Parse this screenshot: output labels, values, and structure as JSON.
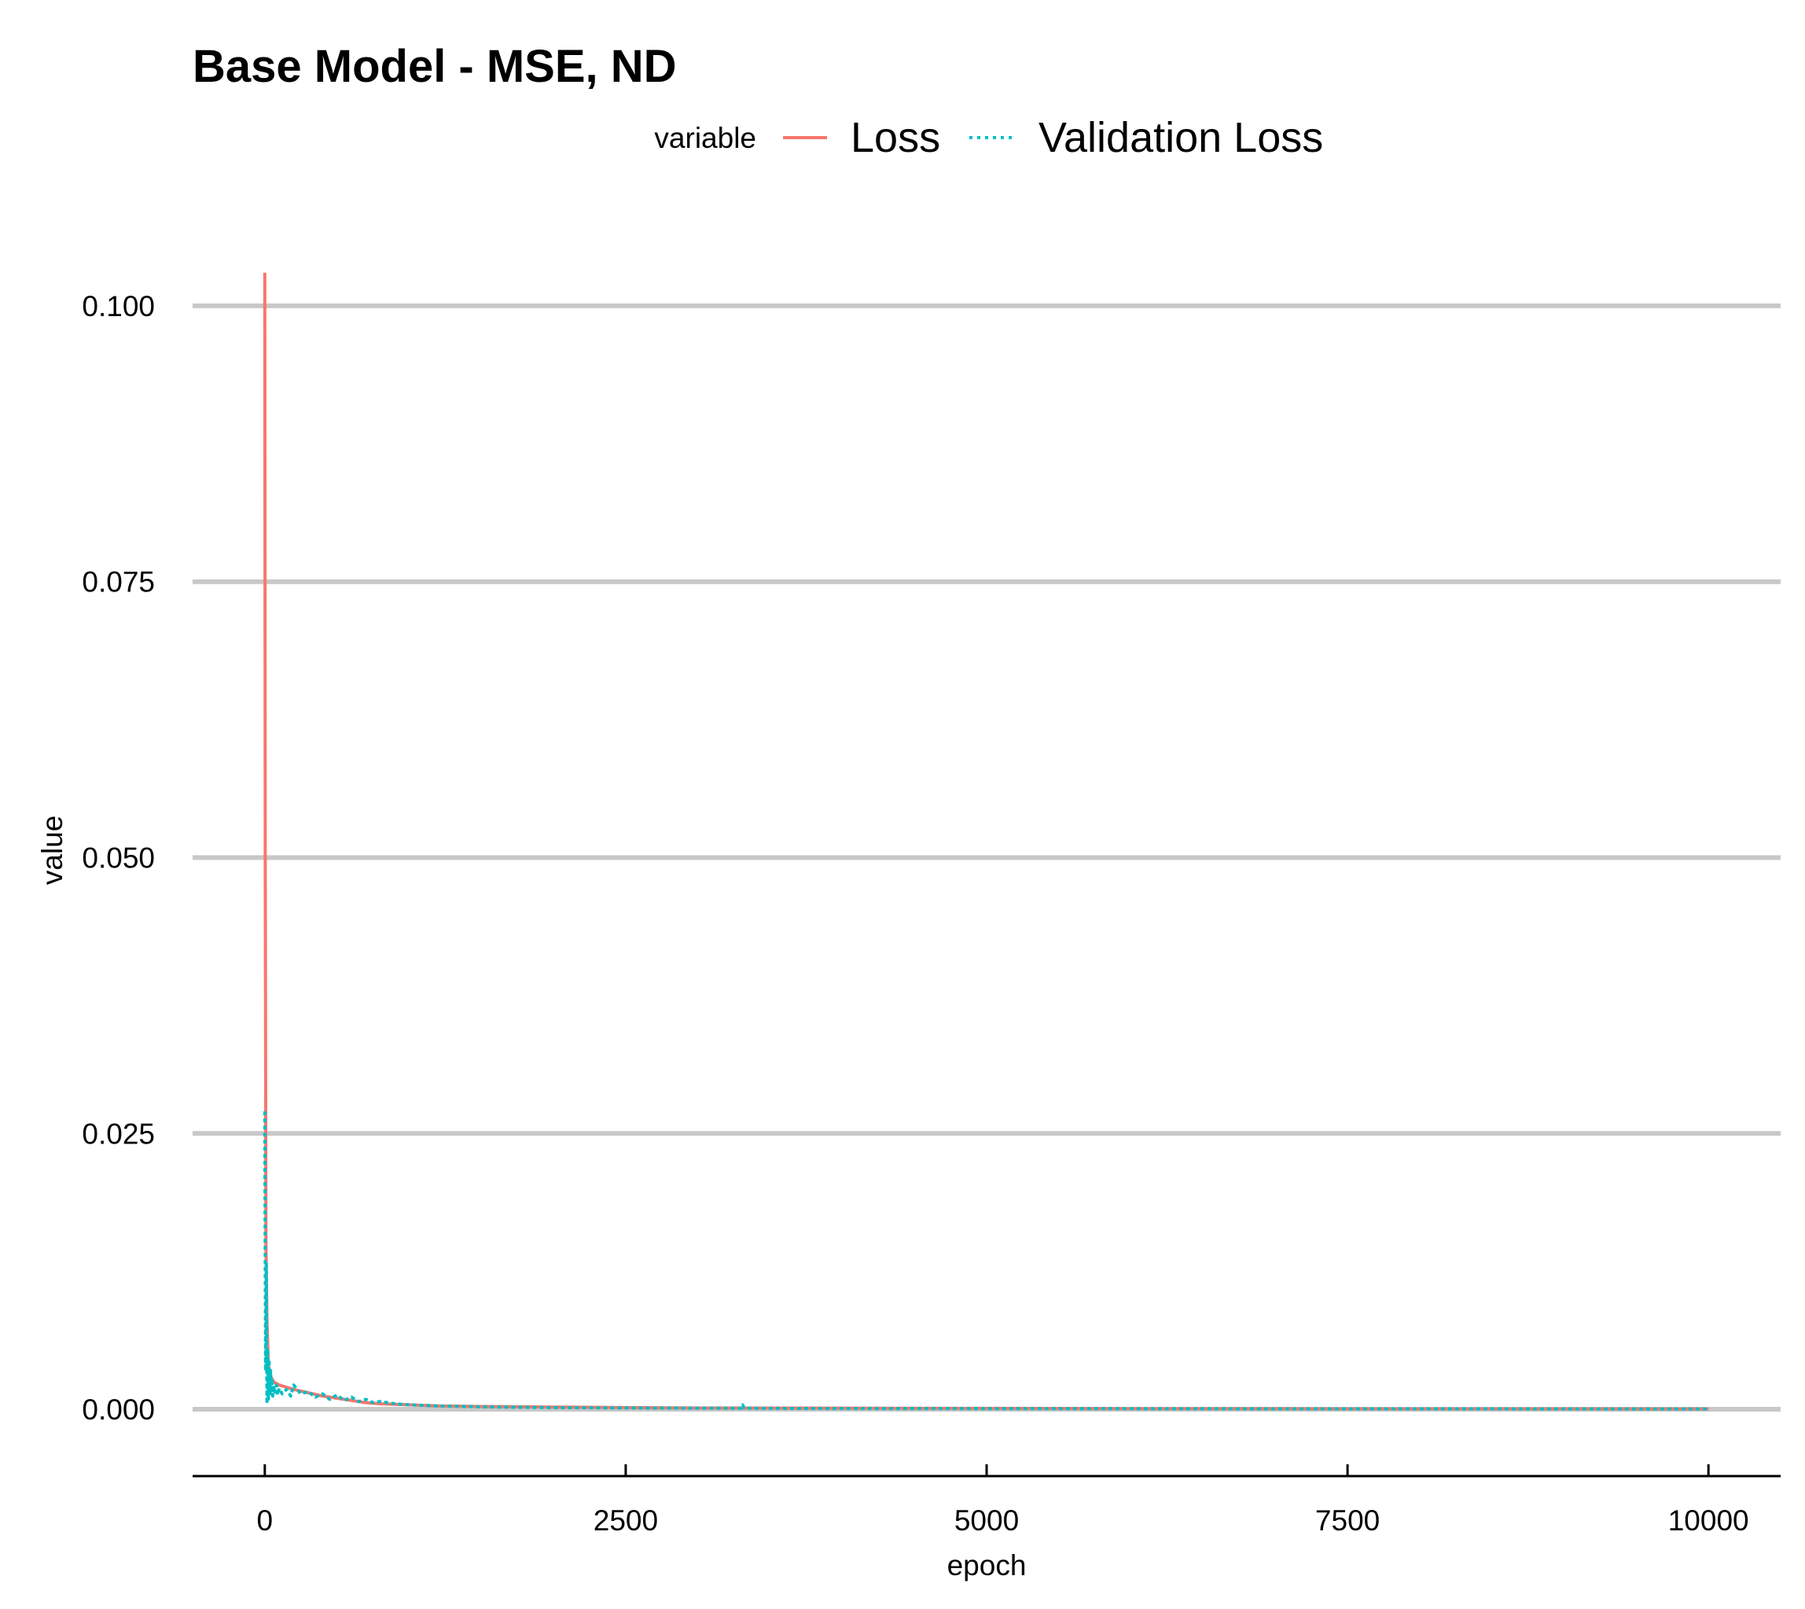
{
  "chart_data": {
    "type": "line",
    "title": "Base Model - MSE, ND",
    "xlabel": "epoch",
    "ylabel": "value",
    "xlim": [
      -500,
      10500
    ],
    "ylim": [
      -0.0052,
      0.1042
    ],
    "x_ticks": [
      0,
      2500,
      5000,
      7500,
      10000
    ],
    "x_tick_labels": [
      "0",
      "2500",
      "5000",
      "7500",
      "10000"
    ],
    "y_ticks": [
      0.0,
      0.025,
      0.05,
      0.075,
      0.1
    ],
    "y_tick_labels": [
      "0.000",
      "0.025",
      "0.050",
      "0.075",
      "0.100"
    ],
    "grid": "horizontal major lines",
    "legend": {
      "title": "variable",
      "position": "top",
      "entries": [
        {
          "name": "Loss",
          "color": "#F8766D",
          "linetype": "solid"
        },
        {
          "name": "Validation Loss",
          "color": "#00BFC4",
          "linetype": "dotted"
        }
      ]
    },
    "series": [
      {
        "name": "Loss",
        "color": "#F8766D",
        "linetype": "solid",
        "x": [
          0,
          3,
          8,
          15,
          25,
          40,
          60,
          100,
          150,
          200,
          300,
          400,
          500,
          600,
          700,
          800,
          1000,
          1200,
          1500,
          2000,
          2500,
          3000,
          4000,
          5000,
          6000,
          7000,
          8000,
          9000,
          10000
        ],
        "y": [
          0.103,
          0.05,
          0.015,
          0.008,
          0.004,
          0.003,
          0.0025,
          0.0022,
          0.002,
          0.0018,
          0.0015,
          0.0012,
          0.001,
          0.0008,
          0.0006,
          0.0005,
          0.0004,
          0.0003,
          0.00025,
          0.0002,
          0.00015,
          0.00012,
          0.0001,
          8e-05,
          6e-05,
          5e-05,
          4e-05,
          4e-05,
          3e-05
        ]
      },
      {
        "name": "Validation Loss",
        "color": "#00BFC4",
        "linetype": "dotted",
        "x": [
          0,
          3,
          6,
          10,
          15,
          20,
          25,
          30,
          35,
          40,
          45,
          50,
          55,
          60,
          70,
          80,
          90,
          100,
          120,
          150,
          180,
          200,
          250,
          300,
          350,
          400,
          450,
          500,
          550,
          600,
          650,
          700,
          750,
          800,
          900,
          1000,
          1200,
          1400,
          1600,
          1800,
          2000,
          2500,
          3000,
          3300,
          3310,
          3320,
          3400,
          3500,
          4000,
          5000,
          6000,
          7000,
          8000,
          9000,
          10000
        ],
        "y": [
          0.027,
          0.013,
          0.0035,
          0.0133,
          0.0005,
          0.0055,
          0.0008,
          0.0045,
          0.0012,
          0.0035,
          0.0015,
          0.0028,
          0.0012,
          0.0022,
          0.0014,
          0.0022,
          0.0013,
          0.0019,
          0.0014,
          0.0018,
          0.0012,
          0.0022,
          0.0014,
          0.0016,
          0.0011,
          0.0014,
          0.0009,
          0.0013,
          0.0008,
          0.0011,
          0.0007,
          0.0009,
          0.0006,
          0.0007,
          0.0005,
          0.0004,
          0.0003,
          0.00025,
          0.0002,
          0.00018,
          0.00015,
          0.00012,
          0.0001,
          9e-05,
          0.0004,
          0.0001,
          9e-05,
          8e-05,
          7e-05,
          6e-05,
          5e-05,
          4e-05,
          4e-05,
          3e-05,
          3e-05
        ]
      }
    ]
  }
}
